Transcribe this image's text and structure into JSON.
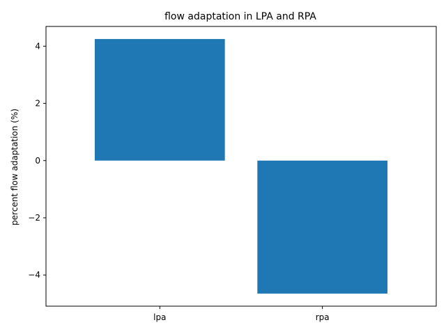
{
  "chart_data": {
    "type": "bar",
    "title": "flow adaptation in LPA and RPA",
    "xlabel": "",
    "ylabel": "percent flow adaptation (%)",
    "categories": [
      "lpa",
      "rpa"
    ],
    "values": [
      4.25,
      -4.65
    ],
    "ylim": [
      -5.09,
      4.69
    ],
    "yticks": [
      -4,
      -2,
      0,
      2,
      4
    ],
    "ytick_labels": [
      "−4",
      "−2",
      "0",
      "2",
      "4"
    ],
    "bar_color": "#1f77b4",
    "grid": false,
    "legend": "none"
  }
}
